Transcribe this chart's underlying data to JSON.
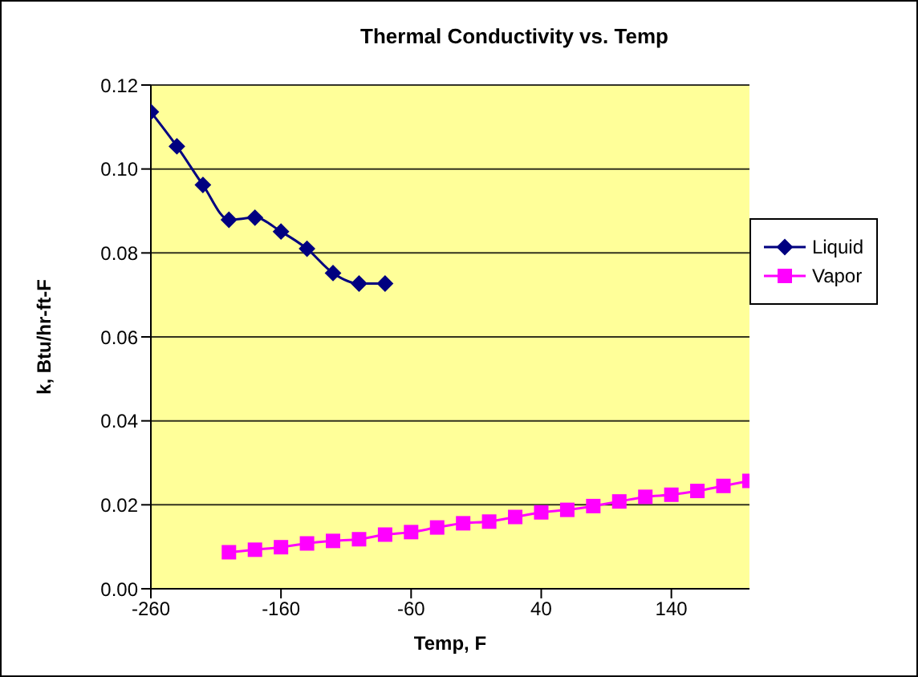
{
  "chart_data": {
    "type": "line",
    "title": "Thermal Conductivity vs. Temp",
    "xlabel": "Temp, F",
    "ylabel": "k, Btu/hr-ft-F",
    "series": [
      {
        "name": "Liquid",
        "color": "#000080",
        "marker": "diamond",
        "x": [
          -260,
          -240,
          -220,
          -200,
          -180,
          -160,
          -140,
          -120,
          -100,
          -80
        ],
        "values": [
          0.1136,
          0.1054,
          0.0962,
          0.0879,
          0.0884,
          0.0851,
          0.081,
          0.0752,
          0.0727,
          0.0727
        ]
      },
      {
        "name": "Vapor",
        "color": "#ff00ff",
        "marker": "square",
        "x": [
          -200,
          -180,
          -160,
          -140,
          -120,
          -100,
          -80,
          -60,
          -40,
          -20,
          0,
          20,
          40,
          60,
          80,
          100,
          120,
          140,
          160,
          180,
          200
        ],
        "values": [
          0.0087,
          0.0093,
          0.0099,
          0.0108,
          0.0114,
          0.0118,
          0.0129,
          0.0135,
          0.0146,
          0.0156,
          0.016,
          0.0171,
          0.0182,
          0.0188,
          0.0197,
          0.0208,
          0.0219,
          0.0224,
          0.0233,
          0.0245,
          0.0257
        ]
      }
    ],
    "xlim": [
      -260,
      200
    ],
    "xticks": [
      -260,
      -160,
      -60,
      40,
      140
    ],
    "ylim": [
      0,
      0.12
    ],
    "yticks": [
      {
        "value": 0,
        "label": "0.00"
      },
      {
        "value": 0.02,
        "label": "0.02"
      },
      {
        "value": 0.04,
        "label": "0.04"
      },
      {
        "value": 0.06,
        "label": "0.06"
      },
      {
        "value": 0.08,
        "label": "0.08"
      },
      {
        "value": 0.1,
        "label": "0.10"
      },
      {
        "value": 0.12,
        "label": "0.12"
      }
    ],
    "grid": "y",
    "legend": "top right"
  }
}
